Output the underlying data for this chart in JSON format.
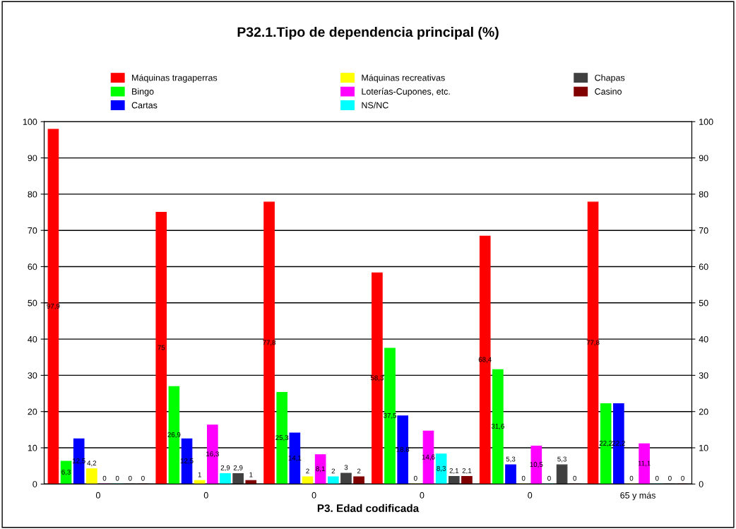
{
  "chart_data": {
    "type": "bar",
    "title": "P32.1.Tipo de dependencia principal (%)",
    "xlabel": "P3. Edad codificada",
    "categories": [
      "0",
      "0",
      "0",
      "0",
      "0",
      "65 y más"
    ],
    "series": [
      {
        "name": "Máquinas tragaperras",
        "color": "#ff0000",
        "values": [
          97.9,
          75,
          77.8,
          58.3,
          68.4,
          77.8
        ],
        "value_labels": [
          "97,9",
          "75",
          "77,8",
          "58,3",
          "68,4",
          "77,8"
        ]
      },
      {
        "name": "Bingo",
        "color": "#00ff00",
        "values": [
          6.3,
          26.9,
          25.3,
          37.5,
          31.6,
          22.2
        ],
        "value_labels": [
          "6,3",
          "26,9",
          "25,3",
          "37,5",
          "31,6",
          "22,2"
        ]
      },
      {
        "name": "Cartas",
        "color": "#0000ff",
        "values": [
          12.5,
          12.5,
          14.1,
          18.8,
          5.3,
          22.2
        ],
        "value_labels": [
          "12,5",
          "12,5",
          "14,1",
          "18,8",
          "5,3",
          "22,2"
        ]
      },
      {
        "name": "Máquinas recreativas",
        "color": "#ffff00",
        "values": [
          4.2,
          1,
          2,
          0,
          0,
          0
        ],
        "value_labels": [
          "4,2",
          "1",
          "2",
          "0",
          "0",
          "0"
        ]
      },
      {
        "name": "Loterías-Cupones, etc.",
        "color": "#ff00ff",
        "values": [
          0,
          16.3,
          8.1,
          14.6,
          10.5,
          11.1
        ],
        "value_labels": [
          "0",
          "16,3",
          "8,1",
          "14,6",
          "10,5",
          "11,1"
        ]
      },
      {
        "name": "NS/NC",
        "color": "#00ffff",
        "values": [
          0,
          2.9,
          2,
          8.3,
          0,
          0
        ],
        "value_labels": [
          "0",
          "2,9",
          "2",
          "8,3",
          "0",
          "0"
        ]
      },
      {
        "name": "Chapas",
        "color": "#404040",
        "values": [
          0,
          2.9,
          3,
          2.1,
          5.3,
          0
        ],
        "value_labels": [
          "0",
          "2,9",
          "3",
          "2,1",
          "5,3",
          "0"
        ]
      },
      {
        "name": "Casino",
        "color": "#800000",
        "values": [
          0,
          1,
          2,
          2.1,
          0,
          0
        ],
        "value_labels": [
          "0",
          "1",
          "2",
          "2,1",
          "0",
          "0"
        ]
      }
    ],
    "ylim": [
      0,
      100
    ],
    "yticks": [
      0,
      10,
      20,
      30,
      40,
      50,
      60,
      70,
      80,
      90,
      100
    ],
    "y2lim": [
      0,
      100
    ],
    "y2ticks": [
      0,
      10,
      20,
      30,
      40,
      50,
      60,
      70,
      80,
      90,
      100
    ],
    "grid": true,
    "legend": "top"
  }
}
